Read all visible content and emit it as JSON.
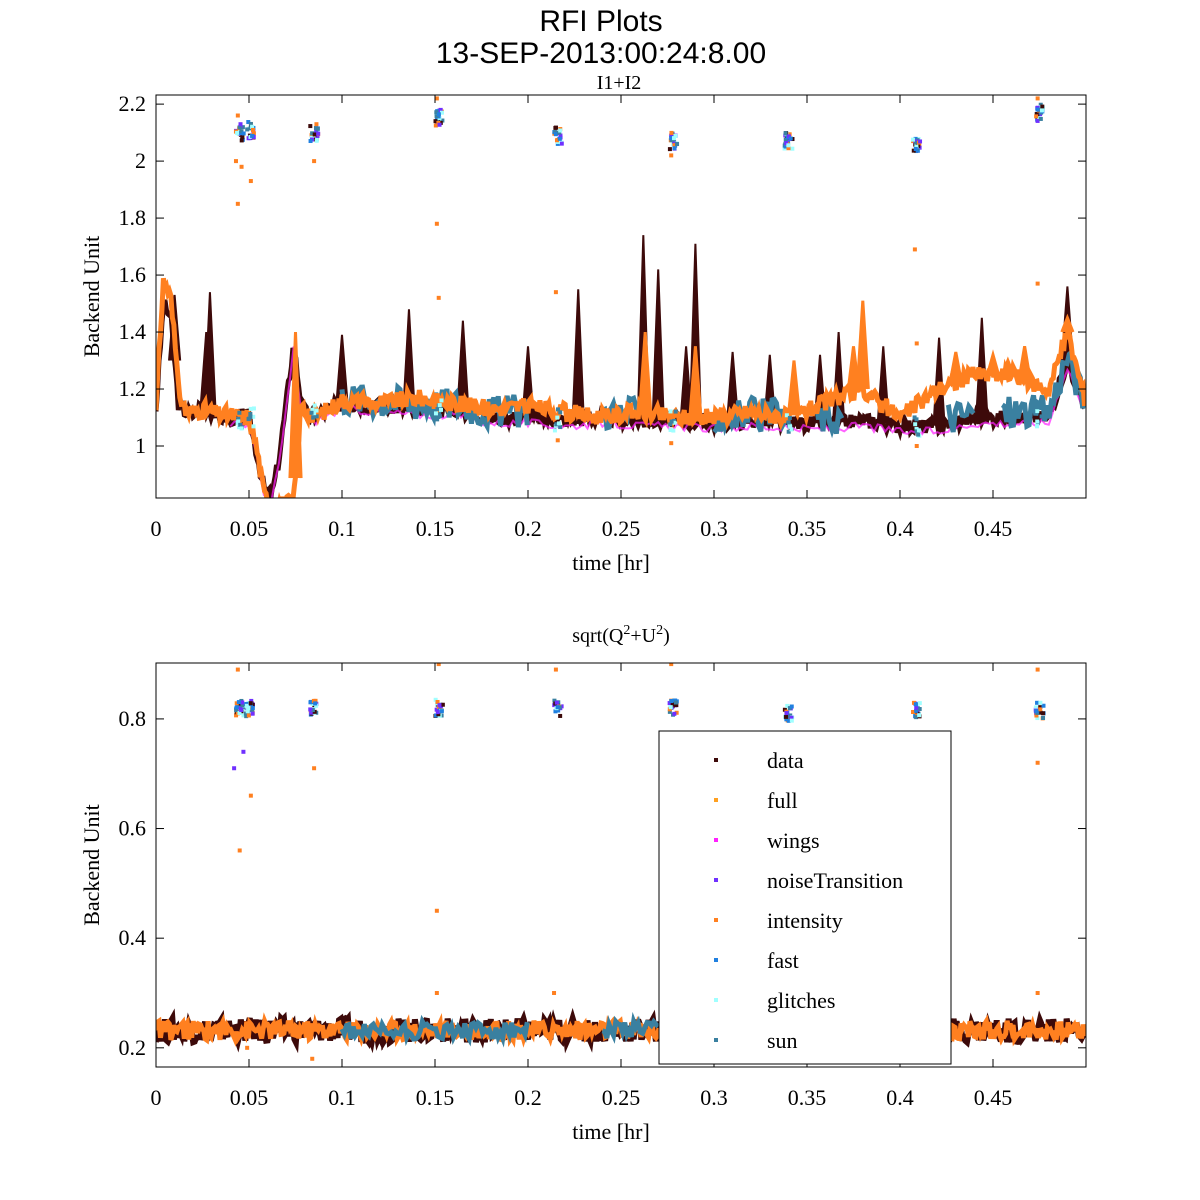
{
  "chart_data": [
    {
      "type": "scatter",
      "title": "RFI Plots",
      "subtitle": "13-SEP-2013:00:24:8.00",
      "panel_title": "I1+I2",
      "xlabel": "time [hr]",
      "ylabel": "Backend Unit",
      "xlim": [
        0,
        0.5
      ],
      "ylim": [
        0.8175,
        2.232
      ],
      "xticks": [
        0,
        0.05,
        0.1,
        0.15,
        0.2,
        0.25,
        0.3,
        0.35,
        0.4,
        0.45
      ],
      "xtick_labels": [
        "0",
        "0.05",
        "0.1",
        "0.15",
        "0.2",
        "0.25",
        "0.3",
        "0.35",
        "0.4",
        "0.45"
      ],
      "yticks": [
        1,
        1.2,
        1.4,
        1.6,
        1.8,
        2,
        2.2
      ],
      "ytick_labels": [
        "1",
        "1.2",
        "1.4",
        "1.6",
        "1.8",
        "2",
        "2.2"
      ],
      "baseline": {
        "x": [
          0,
          0.004,
          0.008,
          0.012,
          0.016,
          0.02,
          0.025,
          0.03,
          0.035,
          0.04,
          0.045,
          0.05,
          0.054,
          0.058,
          0.062,
          0.066,
          0.07,
          0.074,
          0.078,
          0.082,
          0.09,
          0.1,
          0.12,
          0.14,
          0.16,
          0.18,
          0.2,
          0.22,
          0.24,
          0.26,
          0.28,
          0.3,
          0.32,
          0.34,
          0.36,
          0.38,
          0.4,
          0.42,
          0.44,
          0.46,
          0.48,
          0.49,
          0.5
        ],
        "data": [
          1.13,
          1.5,
          1.45,
          1.15,
          1.12,
          1.11,
          1.15,
          1.12,
          1.1,
          1.1,
          1.1,
          1.1,
          0.98,
          0.85,
          0.82,
          0.95,
          1.15,
          1.36,
          1.15,
          1.1,
          1.12,
          1.15,
          1.14,
          1.13,
          1.13,
          1.1,
          1.1,
          1.09,
          1.1,
          1.09,
          1.09,
          1.08,
          1.09,
          1.08,
          1.08,
          1.09,
          1.07,
          1.07,
          1.1,
          1.1,
          1.1,
          1.3,
          1.12
        ],
        "intensity": [
          1.15,
          1.56,
          1.55,
          1.2,
          1.12,
          1.12,
          1.13,
          1.12,
          1.11,
          1.11,
          1.1,
          1.1,
          1.0,
          0.83,
          0.8,
          0.8,
          0.8,
          0.8,
          1.15,
          1.1,
          1.12,
          1.16,
          1.15,
          1.17,
          1.15,
          1.13,
          1.14,
          1.12,
          1.1,
          1.12,
          1.1,
          1.1,
          1.12,
          1.1,
          1.15,
          1.2,
          1.1,
          1.2,
          1.25,
          1.25,
          1.2,
          1.4,
          1.15
        ]
      },
      "data_spikes": [
        [
          0.01,
          1.53
        ],
        [
          0.027,
          1.4
        ],
        [
          0.029,
          1.54
        ],
        [
          0.1,
          1.39
        ],
        [
          0.136,
          1.48
        ],
        [
          0.165,
          1.44
        ],
        [
          0.2,
          1.35
        ],
        [
          0.227,
          1.55
        ],
        [
          0.262,
          1.74
        ],
        [
          0.27,
          1.62
        ],
        [
          0.29,
          1.71
        ],
        [
          0.285,
          1.35
        ],
        [
          0.31,
          1.33
        ],
        [
          0.33,
          1.32
        ],
        [
          0.357,
          1.32
        ],
        [
          0.367,
          1.4
        ],
        [
          0.391,
          1.35
        ],
        [
          0.421,
          1.38
        ],
        [
          0.444,
          1.45
        ],
        [
          0.49,
          1.56
        ]
      ],
      "intensity_spikes": [
        [
          0.075,
          1.4
        ],
        [
          0.263,
          1.4
        ],
        [
          0.29,
          1.35
        ],
        [
          0.343,
          1.3
        ],
        [
          0.375,
          1.35
        ],
        [
          0.38,
          1.51
        ],
        [
          0.43,
          1.33
        ],
        [
          0.45,
          1.32
        ],
        [
          0.458,
          1.3
        ],
        [
          0.467,
          1.35
        ],
        [
          0.49,
          1.45
        ]
      ],
      "sun_segments": [
        [
          0.1,
          0.2
        ],
        [
          0.24,
          0.26
        ],
        [
          0.3,
          0.34
        ],
        [
          0.355,
          0.37
        ],
        [
          0.425,
          0.44
        ],
        [
          0.455,
          0.5
        ]
      ],
      "clusters": [
        [
          0.044,
          2.1
        ],
        [
          0.05,
          2.11
        ],
        [
          0.084,
          2.1
        ],
        [
          0.151,
          2.15
        ],
        [
          0.215,
          2.09
        ],
        [
          0.277,
          2.07
        ],
        [
          0.339,
          2.07
        ],
        [
          0.408,
          2.06
        ],
        [
          0.474,
          2.17
        ]
      ],
      "outliers": [
        [
          0.044,
          2.16
        ],
        [
          0.044,
          1.85
        ],
        [
          0.046,
          1.98
        ],
        [
          0.043,
          2.0
        ],
        [
          0.051,
          1.93
        ],
        [
          0.085,
          2.0
        ],
        [
          0.151,
          1.78
        ],
        [
          0.152,
          1.52
        ],
        [
          0.151,
          2.22
        ],
        [
          0.215,
          1.54
        ],
        [
          0.216,
          1.02
        ],
        [
          0.277,
          2.02
        ],
        [
          0.408,
          1.69
        ],
        [
          0.409,
          1.36
        ],
        [
          0.474,
          2.22
        ],
        [
          0.474,
          1.57
        ],
        [
          0.409,
          1.0
        ],
        [
          0.277,
          1.01
        ]
      ]
    },
    {
      "type": "scatter",
      "title": "sqrt(Q2+U2)",
      "title_parts": [
        "sqrt(Q",
        "2",
        "+U",
        "2",
        ")"
      ],
      "xlabel": "time [hr]",
      "ylabel": "Backend Unit",
      "xlim": [
        0,
        0.5
      ],
      "ylim": [
        0.165,
        0.902
      ],
      "xticks": [
        0,
        0.05,
        0.1,
        0.15,
        0.2,
        0.25,
        0.3,
        0.35,
        0.4,
        0.45
      ],
      "xtick_labels": [
        "0",
        "0.05",
        "0.1",
        "0.15",
        "0.2",
        "0.25",
        "0.3",
        "0.35",
        "0.4",
        "0.45"
      ],
      "yticks": [
        0.2,
        0.4,
        0.6,
        0.8
      ],
      "ytick_labels": [
        "0.2",
        "0.4",
        "0.6",
        "0.8"
      ],
      "band": {
        "center": 0.232,
        "halfwidth": 0.022
      },
      "clusters": [
        [
          0.044,
          0.82
        ],
        [
          0.049,
          0.82
        ],
        [
          0.084,
          0.82
        ],
        [
          0.151,
          0.82
        ],
        [
          0.215,
          0.82
        ],
        [
          0.277,
          0.82
        ],
        [
          0.339,
          0.81
        ],
        [
          0.408,
          0.815
        ],
        [
          0.474,
          0.815
        ]
      ],
      "outliers": [
        [
          0.044,
          0.89
        ],
        [
          0.045,
          0.56
        ],
        [
          0.051,
          0.66
        ],
        [
          0.085,
          0.71
        ],
        [
          0.151,
          0.45
        ],
        [
          0.151,
          0.3
        ],
        [
          0.152,
          0.9
        ],
        [
          0.214,
          0.3
        ],
        [
          0.215,
          0.89
        ],
        [
          0.277,
          0.9
        ],
        [
          0.474,
          0.72
        ],
        [
          0.474,
          0.3
        ],
        [
          0.474,
          0.89
        ],
        [
          0.084,
          0.18
        ],
        [
          0.049,
          0.2
        ]
      ],
      "purple_outliers": [
        [
          0.042,
          0.71
        ],
        [
          0.047,
          0.74
        ]
      ],
      "legend": {
        "placement": "lower-right",
        "entries": [
          {
            "label": "data",
            "color": "#3d0a0a"
          },
          {
            "label": "full",
            "color": "#ffa020"
          },
          {
            "label": "wings",
            "color": "#ff20ff"
          },
          {
            "label": "noiseTransition",
            "color": "#7030ff"
          },
          {
            "label": "intensity",
            "color": "#ff8020"
          },
          {
            "label": "fast",
            "color": "#2080e0"
          },
          {
            "label": "glitches",
            "color": "#a0ffff"
          },
          {
            "label": "sun",
            "color": "#3a80a0"
          }
        ]
      }
    }
  ]
}
